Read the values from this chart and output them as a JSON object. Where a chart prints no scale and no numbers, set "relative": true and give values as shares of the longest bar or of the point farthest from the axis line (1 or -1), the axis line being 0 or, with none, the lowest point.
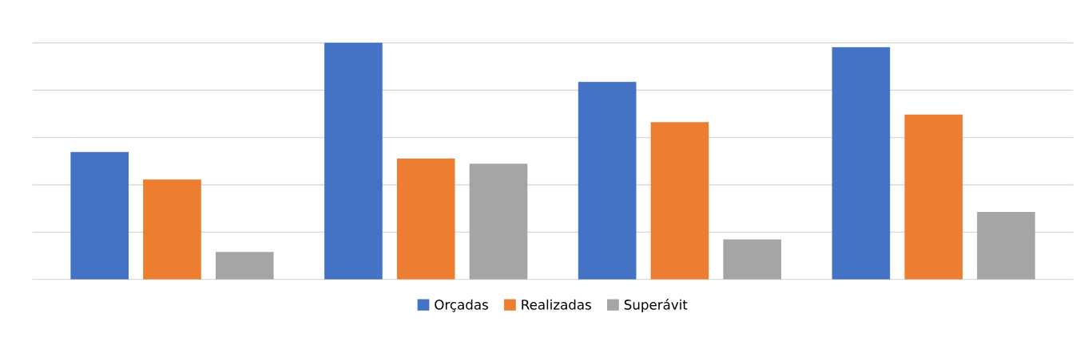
{
  "chart_data": {
    "type": "bar",
    "relative": true,
    "categories": [
      null,
      null,
      null,
      null
    ],
    "series": [
      {
        "name": "Orçadas",
        "color": "#4472c4",
        "values": [
          0.539,
          1,
          0.835,
          0.982
        ]
      },
      {
        "name": "Realizadas",
        "color": "#ed7d31",
        "values": [
          0.423,
          0.511,
          0.665,
          0.697
        ]
      },
      {
        "name": "Superávit",
        "color": "#a5a5a5",
        "values": [
          0.116,
          0.489,
          0.169,
          0.285
        ]
      }
    ],
    "grid": "y",
    "legend": "bottom"
  }
}
